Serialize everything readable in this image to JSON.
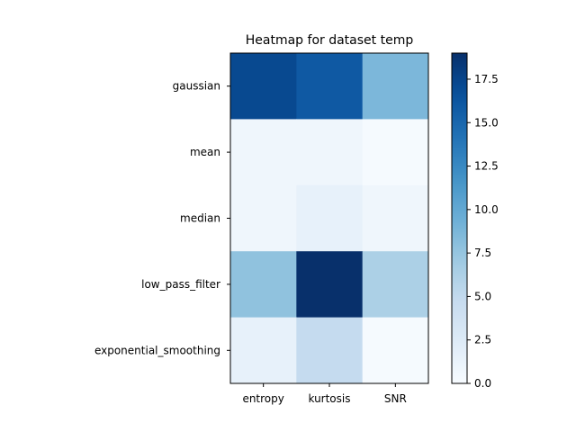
{
  "chart_data": {
    "type": "heatmap",
    "title": "Heatmap for dataset temp",
    "xlabel": "",
    "ylabel": "",
    "x_categories": [
      "entropy",
      "kurtosis",
      "SNR"
    ],
    "y_categories": [
      "gaussian",
      "mean",
      "median",
      "low_pass_filter",
      "exponential_smoothing"
    ],
    "values": [
      [
        17.2,
        16.0,
        8.7
      ],
      [
        0.8,
        0.8,
        0.2
      ],
      [
        0.8,
        1.5,
        0.8
      ],
      [
        7.8,
        19.0,
        6.3
      ],
      [
        1.5,
        4.8,
        0.2
      ]
    ],
    "colormap": "Blues",
    "colorbar": {
      "min": 0.0,
      "max": 19.0,
      "ticks": [
        0.0,
        2.5,
        5.0,
        7.5,
        10.0,
        12.5,
        15.0,
        17.5
      ],
      "tick_labels": [
        "0.0",
        "2.5",
        "5.0",
        "7.5",
        "10.0",
        "12.5",
        "15.0",
        "17.5"
      ]
    },
    "grid": false
  }
}
